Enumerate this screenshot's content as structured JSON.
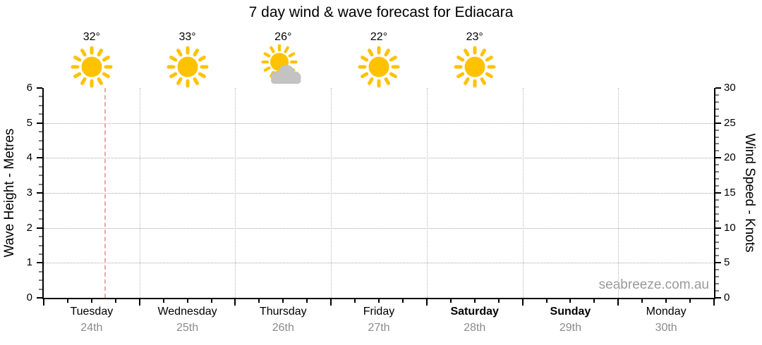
{
  "title": "7 day wind & wave forecast for Ediacara",
  "watermark": "seabreeze.com.au",
  "colors": {
    "sun": "#ffc200",
    "cloud": "#c3c3c3",
    "now_line": "#f2a3a3",
    "grid": "#a6a6a6",
    "date_text": "#8a8a8a",
    "watermark_text": "#9a9a9a",
    "minor_tick": "#7a7a7a",
    "major_tick": "#000000"
  },
  "chart_data": {
    "type": "line",
    "title": "7 day wind & wave forecast for Ediacara",
    "left_axis": {
      "label": "Wave Height - Metres",
      "min": 0,
      "max": 6,
      "major_step": 1,
      "minor_step": 0.25
    },
    "right_axis": {
      "label": "Wind Speed - Knots",
      "min": 0,
      "max": 30,
      "major_step": 5,
      "minor_step": 1
    },
    "grid": "dotted horizontal at each metre (1-5) and vertical at each day boundary",
    "legend": "none",
    "series": [],
    "days": [
      {
        "name": "Tuesday",
        "date": "24th",
        "bold": false,
        "temp": "32°",
        "icon": "sunny"
      },
      {
        "name": "Wednesday",
        "date": "25th",
        "bold": false,
        "temp": "33°",
        "icon": "sunny"
      },
      {
        "name": "Thursday",
        "date": "26th",
        "bold": false,
        "temp": "26°",
        "icon": "partly-cloudy"
      },
      {
        "name": "Friday",
        "date": "27th",
        "bold": false,
        "temp": "22°",
        "icon": "sunny"
      },
      {
        "name": "Saturday",
        "date": "28th",
        "bold": true,
        "temp": "23°",
        "icon": "sunny"
      },
      {
        "name": "Sunday",
        "date": "29th",
        "bold": true,
        "temp": null,
        "icon": null
      },
      {
        "name": "Monday",
        "date": "30th",
        "bold": false,
        "temp": null,
        "icon": null
      }
    ],
    "now_marker": {
      "day_index": 0,
      "fraction": 0.64
    }
  }
}
